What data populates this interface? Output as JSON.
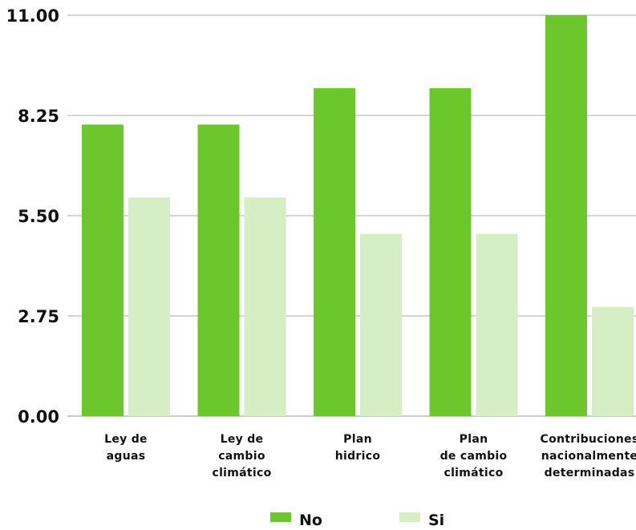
{
  "chart_data": {
    "type": "bar",
    "categories": [
      [
        "Ley de",
        "aguas"
      ],
      [
        "Ley de",
        "cambio",
        "climático"
      ],
      [
        "Plan",
        "hidrico"
      ],
      [
        "Plan",
        "de cambio",
        "climático"
      ],
      [
        "Contribuciones",
        "nacionalmente",
        "determinadas"
      ]
    ],
    "series": [
      {
        "name": "No",
        "color": "#6cc72c",
        "values": [
          8,
          8,
          9,
          9,
          11
        ]
      },
      {
        "name": "Si",
        "color": "#d5eec4",
        "values": [
          6,
          6,
          5,
          5,
          3
        ]
      }
    ],
    "ylim": [
      0,
      11
    ],
    "yticks": [
      "0.00",
      "2.75",
      "5.50",
      "8.25",
      "11.00"
    ],
    "grid": true,
    "legend_position": "bottom-center"
  }
}
